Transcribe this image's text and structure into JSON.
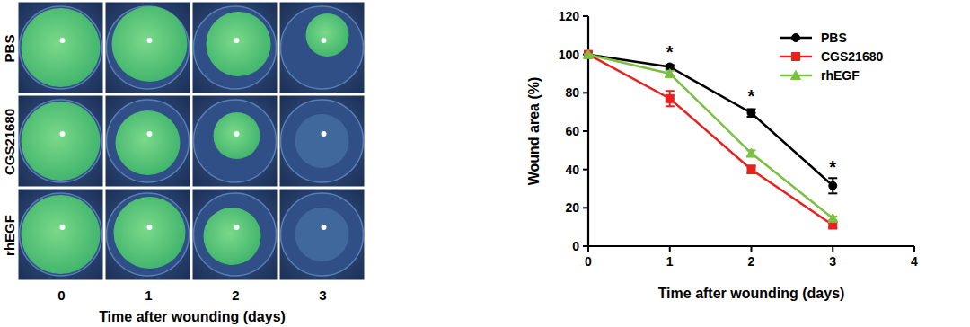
{
  "image_panel": {
    "rows": [
      "PBS",
      "CGS21680",
      "rhEGF"
    ],
    "columns": [
      0,
      1,
      2,
      3
    ],
    "xlabel": "Time after wounding (days)"
  },
  "chart_data": {
    "type": "line",
    "xlabel": "Time after wounding (days)",
    "ylabel": "Wound area (%)",
    "x": [
      0,
      1,
      2,
      3
    ],
    "series": [
      {
        "name": "PBS",
        "color": "#000000",
        "marker": "circle",
        "values": [
          100,
          93.5,
          69.5,
          31.5
        ],
        "errors": [
          0,
          1,
          2,
          4
        ]
      },
      {
        "name": "CGS21680",
        "color": "#e8201e",
        "marker": "square",
        "values": [
          100,
          77,
          40,
          11
        ],
        "errors": [
          0,
          4,
          2,
          1.5
        ]
      },
      {
        "name": "rhEGF",
        "color": "#7ac142",
        "marker": "triangle",
        "values": [
          100,
          90,
          48.5,
          14.5
        ],
        "errors": [
          0,
          1.5,
          1.5,
          1
        ]
      }
    ],
    "xlim": [
      0,
      4
    ],
    "xticks": [
      0,
      1,
      2,
      3,
      4
    ],
    "ylim": [
      0,
      120
    ],
    "yticks": [
      0,
      20,
      40,
      60,
      80,
      100,
      120
    ],
    "grid": false,
    "legend": "upper right",
    "annotations": [
      {
        "text": "*",
        "x": 1,
        "y": 100
      },
      {
        "text": "*",
        "x": 2,
        "y": 77
      },
      {
        "text": "*",
        "x": 3,
        "y": 40
      }
    ]
  }
}
